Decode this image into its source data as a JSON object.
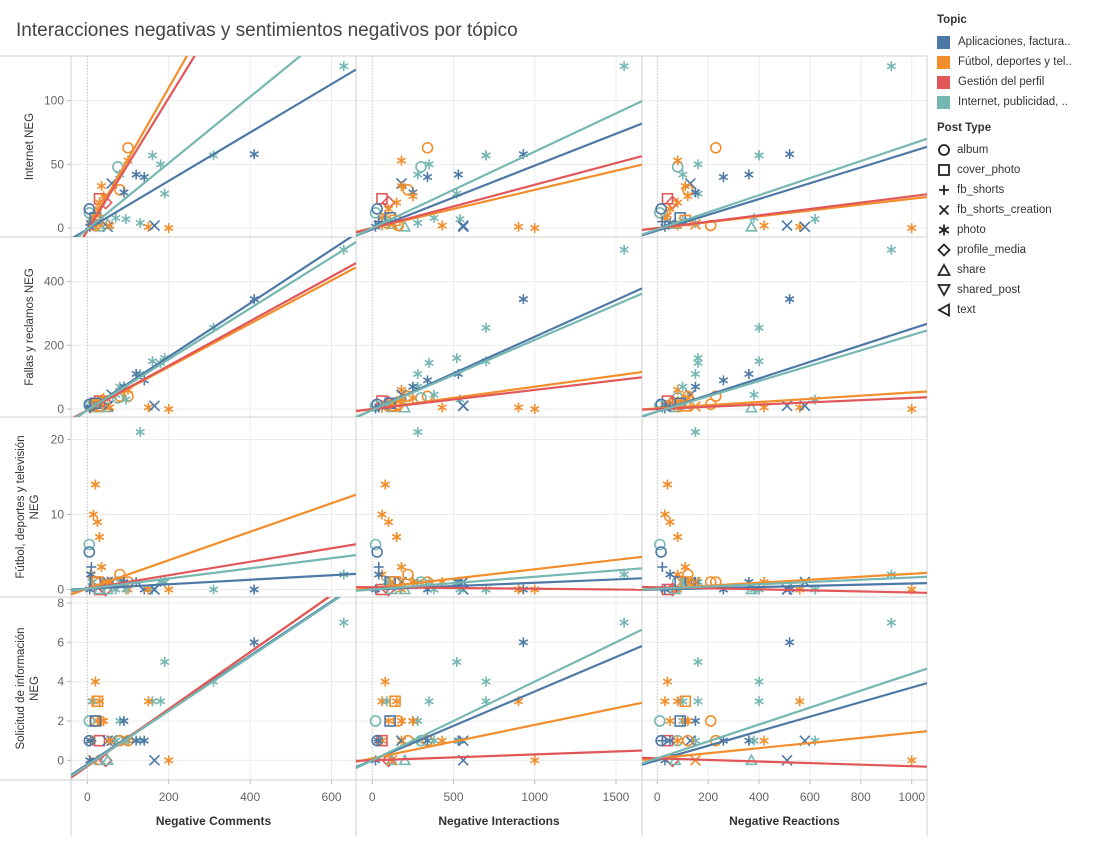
{
  "title": "Interacciones negativas y sentimientos negativos por tópico",
  "legend": {
    "topic_title": "Topic",
    "topics": [
      {
        "label": "Aplicaciones, factura..",
        "color": "#4e79a7"
      },
      {
        "label": "Fútbol, deportes y tel..",
        "color": "#f28e2b"
      },
      {
        "label": "Gestión del perfil",
        "color": "#e15759"
      },
      {
        "label": "Internet, publicidad, ..",
        "color": "#76b7b2"
      }
    ],
    "post_type_title": "Post Type",
    "post_types": [
      {
        "label": "album",
        "icon": "circle"
      },
      {
        "label": "cover_photo",
        "icon": "square"
      },
      {
        "label": "fb_shorts",
        "icon": "plus"
      },
      {
        "label": "fb_shorts_creation",
        "icon": "cross"
      },
      {
        "label": "photo",
        "icon": "asterisk"
      },
      {
        "label": "profile_media",
        "icon": "diamond"
      },
      {
        "label": "share",
        "icon": "triangle-up"
      },
      {
        "label": "shared_post",
        "icon": "triangle-down"
      },
      {
        "label": "text",
        "icon": "triangle-left"
      }
    ]
  },
  "chart_data": {
    "type": "scatter",
    "columns": [
      {
        "label": "Negative Comments",
        "xlim": [
          -40,
          660
        ],
        "ticks": [
          0,
          200,
          400,
          600
        ]
      },
      {
        "label": "Negative Interactions",
        "xlim": [
          -100,
          1660
        ],
        "ticks": [
          0,
          500,
          1000,
          1500
        ]
      },
      {
        "label": "Negative Reactions",
        "xlim": [
          -60,
          1060
        ],
        "ticks": [
          0,
          200,
          400,
          600,
          800,
          1000
        ]
      }
    ],
    "rows": [
      {
        "label": "Internet NEG",
        "ylim": [
          -7,
          135
        ],
        "ticks": [
          0,
          50,
          100
        ]
      },
      {
        "label": "Fallas y reclamos NEG",
        "ylim": [
          -25,
          540
        ],
        "ticks": [
          0,
          200,
          400
        ]
      },
      {
        "label": "Fútbol, deportes y televisión NEG",
        "ylim": [
          -1,
          23
        ],
        "ticks": [
          0,
          10,
          20
        ]
      },
      {
        "label": "Solicitud de información NEG",
        "ylim": [
          -1,
          8.3
        ],
        "ticks": [
          0,
          2,
          4,
          6,
          8
        ]
      }
    ],
    "trend_lines": [
      [
        [
          {
            "topic": 0,
            "slope": 0.19,
            "intercept": -1
          },
          {
            "topic": 1,
            "slope": 0.56,
            "intercept": -2
          },
          {
            "topic": 2,
            "slope": 0.52,
            "intercept": -2
          },
          {
            "topic": 3,
            "slope": 0.26,
            "intercept": -1
          }
        ],
        [
          {
            "topic": 0,
            "slope": 0.05,
            "intercept": -1
          },
          {
            "topic": 1,
            "slope": 0.03,
            "intercept": 0
          },
          {
            "topic": 2,
            "slope": 0.034,
            "intercept": 0
          },
          {
            "topic": 3,
            "slope": 0.06,
            "intercept": 0
          }
        ],
        [
          {
            "topic": 0,
            "slope": 0.062,
            "intercept": -2
          },
          {
            "topic": 1,
            "slope": 0.023,
            "intercept": 0
          },
          {
            "topic": 2,
            "slope": 0.025,
            "intercept": 0
          },
          {
            "topic": 3,
            "slope": 0.067,
            "intercept": -1
          }
        ]
      ],
      [
        [
          {
            "topic": 0,
            "slope": 0.84,
            "intercept": -4
          },
          {
            "topic": 1,
            "slope": 0.68,
            "intercept": -4
          },
          {
            "topic": 2,
            "slope": 0.7,
            "intercept": -4
          },
          {
            "topic": 3,
            "slope": 0.8,
            "intercept": -4
          }
        ],
        [
          {
            "topic": 0,
            "slope": 0.23,
            "intercept": -3
          },
          {
            "topic": 1,
            "slope": 0.07,
            "intercept": 0
          },
          {
            "topic": 2,
            "slope": 0.06,
            "intercept": 0
          },
          {
            "topic": 3,
            "slope": 0.22,
            "intercept": -3
          }
        ],
        [
          {
            "topic": 0,
            "slope": 0.26,
            "intercept": -8
          },
          {
            "topic": 1,
            "slope": 0.05,
            "intercept": 2
          },
          {
            "topic": 2,
            "slope": 0.035,
            "intercept": 0
          },
          {
            "topic": 3,
            "slope": 0.24,
            "intercept": -8
          }
        ],
        [
          {
            "topic": 0,
            "slope": 0.003,
            "intercept": 0.1
          },
          {
            "topic": 1,
            "slope": 0.019,
            "intercept": 0.1
          },
          {
            "topic": 2,
            "slope": 0.009,
            "intercept": 0.1
          },
          {
            "topic": 3,
            "slope": 0.0068,
            "intercept": 0.1
          }
        ]
      ],
      [
        [
          {
            "topic": 0,
            "slope": 0.003,
            "intercept": 0.1
          },
          {
            "topic": 1,
            "slope": 0.019,
            "intercept": 0.1
          },
          {
            "topic": 2,
            "slope": 0.009,
            "intercept": 0.1
          },
          {
            "topic": 3,
            "slope": 0.0068,
            "intercept": 0.1
          }
        ],
        [
          {
            "topic": 0,
            "slope": 0.0009,
            "intercept": 0
          },
          {
            "topic": 1,
            "slope": 0.0025,
            "intercept": 0.2
          },
          {
            "topic": 2,
            "slope": -0.0002,
            "intercept": 0.3
          },
          {
            "topic": 3,
            "slope": 0.0017,
            "intercept": 0
          }
        ],
        [
          {
            "topic": 0,
            "slope": 0.0008,
            "intercept": 0
          },
          {
            "topic": 1,
            "slope": 0.002,
            "intercept": 0.1
          },
          {
            "topic": 2,
            "slope": -0.0007,
            "intercept": 0.3
          },
          {
            "topic": 3,
            "slope": 0.0015,
            "intercept": 0.1
          }
        ]
      ],
      [
        [
          {
            "topic": 0,
            "slope": 0.0138,
            "intercept": -0.2
          },
          {
            "topic": 1,
            "slope": 0.0145,
            "intercept": -0.3
          },
          {
            "topic": 2,
            "slope": 0.0145,
            "intercept": -0.3
          },
          {
            "topic": 3,
            "slope": 0.0138,
            "intercept": -0.25
          }
        ],
        [
          {
            "topic": 0,
            "slope": 0.0035,
            "intercept": 0
          },
          {
            "topic": 1,
            "slope": 0.0017,
            "intercept": 0.1
          },
          {
            "topic": 2,
            "slope": 0.0003,
            "intercept": 0
          },
          {
            "topic": 3,
            "slope": 0.004,
            "intercept": 0
          }
        ],
        [
          {
            "topic": 0,
            "slope": 0.0037,
            "intercept": 0
          },
          {
            "topic": 1,
            "slope": 0.0013,
            "intercept": 0.1
          },
          {
            "topic": 2,
            "slope": -0.0004,
            "intercept": 0.1
          },
          {
            "topic": 3,
            "slope": 0.0043,
            "intercept": 0.1
          }
        ]
      ]
    ],
    "posts": [
      {
        "topic": 3,
        "type": "photo",
        "comments": 630,
        "interactions": 1550,
        "reactions": 920,
        "internet": 127,
        "fallas": 500,
        "futbol": 2,
        "solicitud": 7
      },
      {
        "topic": 0,
        "type": "photo",
        "comments": 410,
        "interactions": 930,
        "reactions": 520,
        "internet": 58,
        "fallas": 345,
        "futbol": 0,
        "solicitud": 6
      },
      {
        "topic": 3,
        "type": "photo",
        "comments": 310,
        "interactions": 700,
        "reactions": 400,
        "internet": 57,
        "fallas": 255,
        "futbol": 0,
        "solicitud": 4
      },
      {
        "topic": 3,
        "type": "photo",
        "comments": 130,
        "interactions": 280,
        "reactions": 150,
        "internet": 4,
        "fallas": 110,
        "futbol": 21,
        "solicitud": 1
      },
      {
        "topic": 3,
        "type": "photo",
        "comments": 190,
        "interactions": 520,
        "reactions": 160,
        "internet": 27,
        "fallas": 160,
        "futbol": 1,
        "solicitud": 5
      },
      {
        "topic": 3,
        "type": "photo",
        "comments": 180,
        "interactions": 350,
        "reactions": 160,
        "internet": 50,
        "fallas": 145,
        "futbol": 1,
        "solicitud": 3
      },
      {
        "topic": 1,
        "type": "album",
        "comments": 100,
        "interactions": 340,
        "reactions": 230,
        "internet": 63,
        "fallas": 40,
        "futbol": 1,
        "solicitud": 1
      },
      {
        "topic": 3,
        "type": "album",
        "comments": 75,
        "interactions": 300,
        "reactions": 80,
        "internet": 48,
        "fallas": 35,
        "futbol": 1,
        "solicitud": 1
      },
      {
        "topic": 1,
        "type": "photo",
        "comments": 100,
        "interactions": 180,
        "reactions": 80,
        "internet": 53,
        "fallas": 60,
        "futbol": 0,
        "solicitud": 1
      },
      {
        "topic": 0,
        "type": "photo",
        "comments": 120,
        "interactions": 530,
        "reactions": 360,
        "internet": 42,
        "fallas": 110,
        "futbol": 1,
        "solicitud": 1
      },
      {
        "topic": 0,
        "type": "photo",
        "comments": 140,
        "interactions": 340,
        "reactions": 260,
        "internet": 40,
        "fallas": 90,
        "futbol": 0,
        "solicitud": 1
      },
      {
        "topic": 3,
        "type": "photo",
        "comments": 160,
        "interactions": 700,
        "reactions": 400,
        "internet": 57,
        "fallas": 150,
        "futbol": 0,
        "solicitud": 3
      },
      {
        "topic": 3,
        "type": "photo",
        "comments": 80,
        "interactions": 280,
        "reactions": 100,
        "internet": 42,
        "fallas": 70,
        "futbol": 1,
        "solicitud": 2
      },
      {
        "topic": 0,
        "type": "fb_shorts_creation",
        "comments": 60,
        "interactions": 180,
        "reactions": 130,
        "internet": 35,
        "fallas": 45,
        "futbol": 1,
        "solicitud": 1
      },
      {
        "topic": 1,
        "type": "photo",
        "comments": 35,
        "interactions": 180,
        "reactions": 110,
        "internet": 33,
        "fallas": 30,
        "futbol": 3,
        "solicitud": 2
      },
      {
        "topic": 1,
        "type": "album",
        "comments": 80,
        "interactions": 220,
        "reactions": 120,
        "internet": 30,
        "fallas": 40,
        "futbol": 2,
        "solicitud": 1
      },
      {
        "topic": 0,
        "type": "photo",
        "comments": 90,
        "interactions": 250,
        "reactions": 150,
        "internet": 28,
        "fallas": 70,
        "futbol": 1,
        "solicitud": 2
      },
      {
        "topic": 2,
        "type": "cover_photo",
        "comments": 30,
        "interactions": 60,
        "reactions": 40,
        "internet": 23,
        "fallas": 25,
        "futbol": 0,
        "solicitud": 1
      },
      {
        "topic": 2,
        "type": "profile_media",
        "comments": 45,
        "interactions": 100,
        "reactions": 60,
        "internet": 20,
        "fallas": 20,
        "futbol": 0,
        "solicitud": 0
      },
      {
        "topic": 3,
        "type": "share",
        "comments": 50,
        "interactions": 120,
        "reactions": 70,
        "internet": 3,
        "fallas": 5,
        "futbol": 0,
        "solicitud": 0
      },
      {
        "topic": 1,
        "type": "photo",
        "comments": 20,
        "interactions": 80,
        "reactions": 40,
        "internet": 10,
        "fallas": 10,
        "futbol": 14,
        "solicitud": 4
      },
      {
        "topic": 1,
        "type": "photo",
        "comments": 15,
        "interactions": 60,
        "reactions": 30,
        "internet": 8,
        "fallas": 12,
        "futbol": 10,
        "solicitud": 3
      },
      {
        "topic": 1,
        "type": "photo",
        "comments": 25,
        "interactions": 100,
        "reactions": 50,
        "internet": 15,
        "fallas": 20,
        "futbol": 9,
        "solicitud": 2
      },
      {
        "topic": 3,
        "type": "album",
        "comments": 5,
        "interactions": 20,
        "reactions": 10,
        "internet": 12,
        "fallas": 10,
        "futbol": 6,
        "solicitud": 2
      },
      {
        "topic": 0,
        "type": "album",
        "comments": 5,
        "interactions": 30,
        "reactions": 15,
        "internet": 15,
        "fallas": 15,
        "futbol": 5,
        "solicitud": 1
      },
      {
        "topic": 1,
        "type": "photo",
        "comments": 30,
        "interactions": 150,
        "reactions": 80,
        "internet": 20,
        "fallas": 25,
        "futbol": 7,
        "solicitud": 3
      },
      {
        "topic": 0,
        "type": "fb_shorts",
        "comments": 10,
        "interactions": 40,
        "reactions": 20,
        "internet": 5,
        "fallas": 5,
        "futbol": 3,
        "solicitud": 1
      },
      {
        "topic": 1,
        "type": "photo",
        "comments": 40,
        "interactions": 250,
        "reactions": 120,
        "internet": 25,
        "fallas": 35,
        "futbol": 1,
        "solicitud": 2
      },
      {
        "topic": 1,
        "type": "photo",
        "comments": 200,
        "interactions": 1000,
        "reactions": 1000,
        "internet": 0,
        "fallas": 0,
        "futbol": 0,
        "solicitud": 0
      },
      {
        "topic": 1,
        "type": "photo",
        "comments": 150,
        "interactions": 900,
        "reactions": 560,
        "internet": 1,
        "fallas": 5,
        "futbol": 0,
        "solicitud": 3
      },
      {
        "topic": 0,
        "type": "fb_shorts_creation",
        "comments": 165,
        "interactions": 560,
        "reactions": 510,
        "internet": 2,
        "fallas": 10,
        "futbol": 0,
        "solicitud": 0
      },
      {
        "topic": 3,
        "type": "photo",
        "comments": 70,
        "interactions": 380,
        "reactions": 380,
        "internet": 8,
        "fallas": 45,
        "futbol": 0,
        "solicitud": 1
      },
      {
        "topic": 3,
        "type": "photo",
        "comments": 95,
        "interactions": 540,
        "reactions": 620,
        "internet": 7,
        "fallas": 30,
        "futbol": 0,
        "solicitud": 1
      },
      {
        "topic": 0,
        "type": "fb_shorts_creation",
        "comments": 50,
        "interactions": 560,
        "reactions": 580,
        "internet": 1,
        "fallas": 10,
        "futbol": 1,
        "solicitud": 1
      },
      {
        "topic": 1,
        "type": "photo",
        "comments": 55,
        "interactions": 430,
        "reactions": 420,
        "internet": 2,
        "fallas": 5,
        "futbol": 1,
        "solicitud": 1
      },
      {
        "topic": 3,
        "type": "share",
        "comments": 30,
        "interactions": 200,
        "reactions": 370,
        "internet": 1,
        "fallas": 4,
        "futbol": 0,
        "solicitud": 0
      },
      {
        "topic": 1,
        "type": "album",
        "comments": 20,
        "interactions": 160,
        "reactions": 210,
        "internet": 2,
        "fallas": 15,
        "futbol": 1,
        "solicitud": 2
      },
      {
        "topic": 1,
        "type": "fb_shorts_creation",
        "comments": 15,
        "interactions": 120,
        "reactions": 150,
        "internet": 3,
        "fallas": 8,
        "futbol": 1,
        "solicitud": 0
      },
      {
        "topic": 1,
        "type": "photo",
        "comments": 10,
        "interactions": 60,
        "reactions": 80,
        "internet": 2,
        "fallas": 4,
        "futbol": 2,
        "solicitud": 1
      },
      {
        "topic": 0,
        "type": "photo",
        "comments": 8,
        "interactions": 40,
        "reactions": 50,
        "internet": 4,
        "fallas": 6,
        "futbol": 2,
        "solicitud": 1
      },
      {
        "topic": 3,
        "type": "photo",
        "comments": 12,
        "interactions": 90,
        "reactions": 100,
        "internet": 6,
        "fallas": 12,
        "futbol": 1,
        "solicitud": 3
      },
      {
        "topic": 0,
        "type": "cover_photo",
        "comments": 20,
        "interactions": 110,
        "reactions": 90,
        "internet": 8,
        "fallas": 18,
        "futbol": 1,
        "solicitud": 2
      },
      {
        "topic": 1,
        "type": "cover_photo",
        "comments": 25,
        "interactions": 140,
        "reactions": 110,
        "internet": 6,
        "fallas": 10,
        "futbol": 1,
        "solicitud": 3
      },
      {
        "topic": 0,
        "type": "photo",
        "comments": 6,
        "interactions": 20,
        "reactions": 30,
        "internet": 1,
        "fallas": 2,
        "futbol": 0,
        "solicitud": 0
      }
    ]
  }
}
